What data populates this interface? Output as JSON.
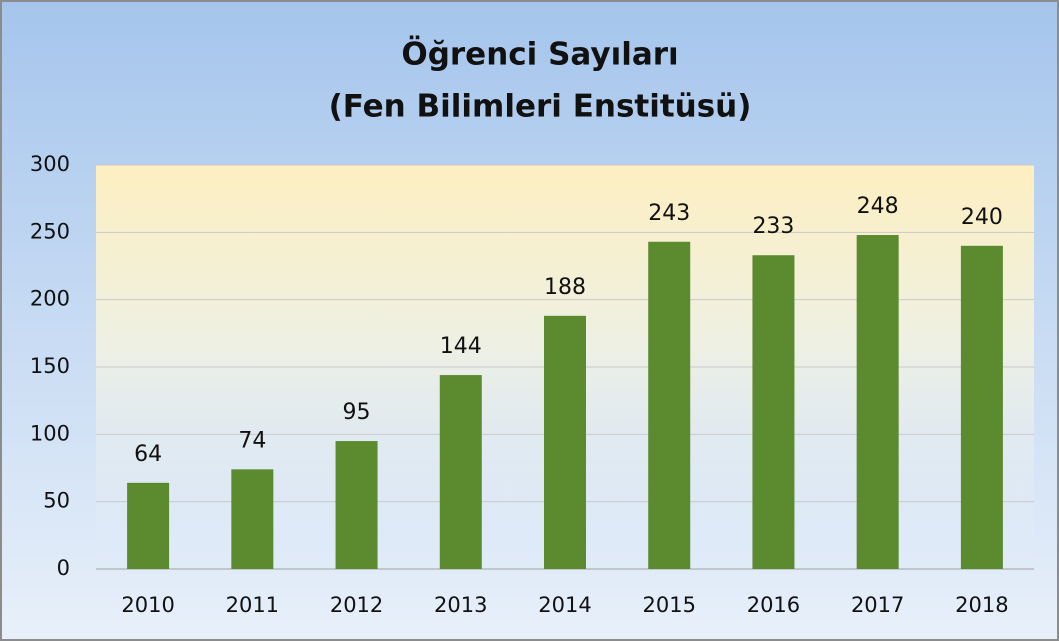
{
  "chart_data": {
    "type": "bar",
    "title": "Öğrenci Sayıları",
    "subtitle": "(Fen Bilimleri Enstitüsü)",
    "categories": [
      "2010",
      "2011",
      "2012",
      "2013",
      "2014",
      "2015",
      "2016",
      "2017",
      "2018"
    ],
    "values": [
      64,
      74,
      95,
      144,
      188,
      243,
      233,
      248,
      240
    ],
    "color": "#5b8a2f",
    "ylim": [
      0,
      300
    ],
    "yticks": [
      0,
      50,
      100,
      150,
      200,
      250,
      300
    ],
    "grid": true,
    "value_labels_shown": true
  }
}
